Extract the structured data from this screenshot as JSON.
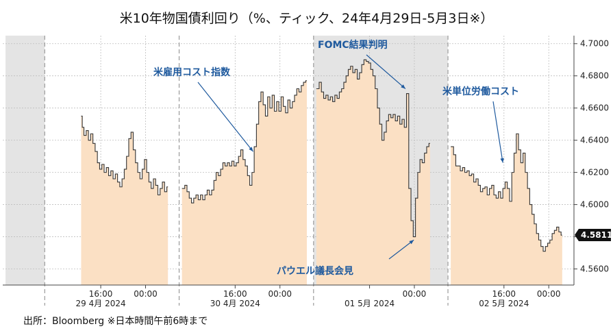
{
  "title": "米10年物国債利回り（%、ティック、24年4月29日-5月3日※）",
  "source": "出所：Bloomberg ※日本時間午前6時まで",
  "chart_data": {
    "type": "area",
    "title": "米10年物国債利回り（%、ティック、24年4月29日-5月3日※）",
    "ylim": [
      4.55,
      4.705
    ],
    "yticks": [
      "4.5600",
      "4.5800",
      "4.6000",
      "4.6200",
      "4.6400",
      "4.6600",
      "4.6800",
      "4.7000"
    ],
    "ytick_values": [
      4.56,
      4.58,
      4.6,
      4.62,
      4.64,
      4.66,
      4.68,
      4.7
    ],
    "last_value_label": "4.5811",
    "last_value": 4.5811,
    "y_axis_position": "right",
    "grid": true,
    "time_labels": [
      {
        "t": 16,
        "top": "16:00",
        "bottom": "29 4月  2024"
      },
      {
        "t": 24,
        "top": "00:00",
        "bottom": ""
      },
      {
        "t": 40,
        "top": "16:00",
        "bottom": "30 4月  2024"
      },
      {
        "t": 48,
        "top": "00:00",
        "bottom": ""
      },
      {
        "t": 64,
        "top": "",
        "bottom": "01 5月  2024"
      },
      {
        "t": 72,
        "top": "00:00",
        "bottom": ""
      },
      {
        "t": 88,
        "top": "16:00",
        "bottom": "02 5月  2024"
      },
      {
        "t": 96,
        "top": "00:00",
        "bottom": ""
      }
    ],
    "day_boundaries": [
      6,
      30,
      54,
      78
    ],
    "shaded_days": [
      [
        -1,
        6
      ],
      [
        54,
        78
      ]
    ],
    "colors": {
      "area": "#fbe0c4",
      "line": "#333333",
      "shade": "#e4e4e4",
      "annotation": "#1f5a9e",
      "last_box": "#111111"
    },
    "segments": [
      {
        "name": "29 Apr",
        "points": [
          [
            12.5,
            4.655
          ],
          [
            12.7,
            4.648
          ],
          [
            13.0,
            4.643
          ],
          [
            13.4,
            4.646
          ],
          [
            13.8,
            4.64
          ],
          [
            14.2,
            4.644
          ],
          [
            14.6,
            4.638
          ],
          [
            15.0,
            4.633
          ],
          [
            15.4,
            4.626
          ],
          [
            15.8,
            4.622
          ],
          [
            16.2,
            4.625
          ],
          [
            16.6,
            4.62
          ],
          [
            17.0,
            4.623
          ],
          [
            17.4,
            4.618
          ],
          [
            17.8,
            4.621
          ],
          [
            18.2,
            4.616
          ],
          [
            18.6,
            4.619
          ],
          [
            19.0,
            4.614
          ],
          [
            19.4,
            4.611
          ],
          [
            19.8,
            4.616
          ],
          [
            20.2,
            4.622
          ],
          [
            20.6,
            4.63
          ],
          [
            21.0,
            4.641
          ],
          [
            21.4,
            4.645
          ],
          [
            21.8,
            4.634
          ],
          [
            22.2,
            4.626
          ],
          [
            22.6,
            4.62
          ],
          [
            23.0,
            4.616
          ],
          [
            23.4,
            4.622
          ],
          [
            23.8,
            4.628
          ],
          [
            24.2,
            4.62
          ],
          [
            24.6,
            4.614
          ],
          [
            25.0,
            4.61
          ],
          [
            25.4,
            4.616
          ],
          [
            25.8,
            4.612
          ],
          [
            26.2,
            4.606
          ],
          [
            26.6,
            4.61
          ],
          [
            27.0,
            4.614
          ],
          [
            27.4,
            4.608
          ],
          [
            27.8,
            4.611
          ]
        ]
      },
      {
        "name": "30 Apr",
        "points": [
          [
            30.5,
            4.61
          ],
          [
            31.0,
            4.612
          ],
          [
            31.4,
            4.608
          ],
          [
            31.8,
            4.604
          ],
          [
            32.2,
            4.601
          ],
          [
            32.6,
            4.604
          ],
          [
            33.0,
            4.606
          ],
          [
            33.4,
            4.603
          ],
          [
            33.8,
            4.606
          ],
          [
            34.2,
            4.603
          ],
          [
            34.6,
            4.606
          ],
          [
            35.0,
            4.609
          ],
          [
            35.4,
            4.606
          ],
          [
            35.8,
            4.609
          ],
          [
            36.2,
            4.615
          ],
          [
            36.6,
            4.62
          ],
          [
            37.0,
            4.618
          ],
          [
            37.4,
            4.622
          ],
          [
            37.8,
            4.626
          ],
          [
            38.2,
            4.624
          ],
          [
            38.6,
            4.626
          ],
          [
            39.0,
            4.624
          ],
          [
            39.4,
            4.627
          ],
          [
            39.8,
            4.624
          ],
          [
            40.2,
            4.626
          ],
          [
            40.6,
            4.63
          ],
          [
            41.0,
            4.634
          ],
          [
            41.4,
            4.628
          ],
          [
            41.8,
            4.624
          ],
          [
            42.2,
            4.618
          ],
          [
            42.6,
            4.612
          ],
          [
            43.0,
            4.62
          ],
          [
            43.4,
            4.636
          ],
          [
            43.8,
            4.65
          ],
          [
            44.2,
            4.664
          ],
          [
            44.6,
            4.67
          ],
          [
            45.0,
            4.662
          ],
          [
            45.4,
            4.655
          ],
          [
            45.8,
            4.667
          ],
          [
            46.2,
            4.66
          ],
          [
            46.6,
            4.668
          ],
          [
            47.0,
            4.658
          ],
          [
            47.4,
            4.664
          ],
          [
            47.8,
            4.658
          ],
          [
            48.2,
            4.667
          ],
          [
            48.6,
            4.661
          ],
          [
            49.0,
            4.657
          ],
          [
            49.4,
            4.665
          ],
          [
            49.8,
            4.66
          ],
          [
            50.2,
            4.664
          ],
          [
            50.6,
            4.668
          ],
          [
            51.0,
            4.672
          ],
          [
            51.4,
            4.67
          ],
          [
            51.8,
            4.674
          ],
          [
            52.2,
            4.676
          ],
          [
            52.6,
            4.677
          ]
        ]
      },
      {
        "name": "01 May",
        "points": [
          [
            54.5,
            4.672
          ],
          [
            55.0,
            4.676
          ],
          [
            55.4,
            4.67
          ],
          [
            55.8,
            4.666
          ],
          [
            56.2,
            4.668
          ],
          [
            56.6,
            4.665
          ],
          [
            57.0,
            4.667
          ],
          [
            57.4,
            4.664
          ],
          [
            57.8,
            4.668
          ],
          [
            58.2,
            4.666
          ],
          [
            58.6,
            4.67
          ],
          [
            59.0,
            4.672
          ],
          [
            59.4,
            4.676
          ],
          [
            59.8,
            4.68
          ],
          [
            60.2,
            4.684
          ],
          [
            60.6,
            4.686
          ],
          [
            61.0,
            4.682
          ],
          [
            61.4,
            4.684
          ],
          [
            61.8,
            4.678
          ],
          [
            62.2,
            4.682
          ],
          [
            62.6,
            4.687
          ],
          [
            63.0,
            4.69
          ],
          [
            63.4,
            4.689
          ],
          [
            63.8,
            4.688
          ],
          [
            64.2,
            4.684
          ],
          [
            64.6,
            4.68
          ],
          [
            65.0,
            4.672
          ],
          [
            65.4,
            4.66
          ],
          [
            65.8,
            4.65
          ],
          [
            66.2,
            4.64
          ],
          [
            66.6,
            4.645
          ],
          [
            67.0,
            4.652
          ],
          [
            67.4,
            4.656
          ],
          [
            67.8,
            4.654
          ],
          [
            68.2,
            4.656
          ],
          [
            68.6,
            4.652
          ],
          [
            69.0,
            4.655
          ],
          [
            69.4,
            4.65
          ],
          [
            69.8,
            4.653
          ],
          [
            70.2,
            4.648
          ],
          [
            70.6,
            4.669
          ],
          [
            71.0,
            4.61
          ],
          [
            71.4,
            4.59
          ],
          [
            71.8,
            4.58
          ],
          [
            72.2,
            4.604
          ],
          [
            72.6,
            4.62
          ],
          [
            73.0,
            4.628
          ],
          [
            73.4,
            4.626
          ],
          [
            73.8,
            4.632
          ],
          [
            74.2,
            4.636
          ],
          [
            74.6,
            4.638
          ]
        ]
      },
      {
        "name": "02 May",
        "points": [
          [
            78.5,
            4.636
          ],
          [
            79.0,
            4.631
          ],
          [
            79.4,
            4.624
          ],
          [
            79.8,
            4.624
          ],
          [
            80.2,
            4.621
          ],
          [
            80.6,
            4.623
          ],
          [
            81.0,
            4.62
          ],
          [
            81.4,
            4.621
          ],
          [
            81.8,
            4.618
          ],
          [
            82.2,
            4.619
          ],
          [
            82.6,
            4.614
          ],
          [
            83.0,
            4.616
          ],
          [
            83.4,
            4.612
          ],
          [
            83.8,
            4.608
          ],
          [
            84.2,
            4.61
          ],
          [
            84.6,
            4.611
          ],
          [
            85.0,
            4.606
          ],
          [
            85.4,
            4.61
          ],
          [
            85.8,
            4.612
          ],
          [
            86.2,
            4.606
          ],
          [
            86.6,
            4.604
          ],
          [
            87.0,
            4.608
          ],
          [
            87.4,
            4.604
          ],
          [
            87.8,
            4.61
          ],
          [
            88.2,
            4.614
          ],
          [
            88.6,
            4.61
          ],
          [
            89.0,
            4.602
          ],
          [
            89.4,
            4.62
          ],
          [
            89.8,
            4.632
          ],
          [
            90.2,
            4.644
          ],
          [
            90.6,
            4.634
          ],
          [
            91.0,
            4.626
          ],
          [
            91.4,
            4.632
          ],
          [
            91.8,
            4.62
          ],
          [
            92.2,
            4.61
          ],
          [
            92.6,
            4.6
          ],
          [
            93.0,
            4.594
          ],
          [
            93.4,
            4.588
          ],
          [
            93.8,
            4.582
          ],
          [
            94.2,
            4.578
          ],
          [
            94.6,
            4.574
          ],
          [
            95.0,
            4.571
          ],
          [
            95.4,
            4.574
          ],
          [
            95.8,
            4.576
          ],
          [
            96.2,
            4.578
          ],
          [
            96.6,
            4.582
          ],
          [
            97.0,
            4.584
          ],
          [
            97.4,
            4.586
          ],
          [
            97.8,
            4.583
          ],
          [
            98.2,
            4.581
          ]
        ]
      }
    ],
    "annotations": [
      {
        "label": "米雇用コスト指数",
        "t": 43.2,
        "value": 4.633
      },
      {
        "label": "FOMC結果判明",
        "t": 70.4,
        "value": 4.672
      },
      {
        "label": "米単位労働コスト",
        "t": 87.8,
        "value": 4.626
      },
      {
        "label": "パウエル議長会見",
        "t": 71.9,
        "value": 4.578
      }
    ]
  }
}
